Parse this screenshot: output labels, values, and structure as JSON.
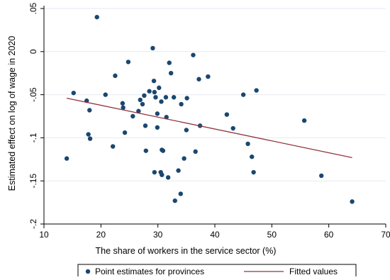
{
  "chart_data": {
    "type": "scatter",
    "xlabel": "The share of workers in the service sector (%)",
    "ylabel": "Estimated effect on log of wage in 2020",
    "xlim": [
      10,
      70
    ],
    "ylim": [
      -0.2,
      0.05
    ],
    "xticks": [
      {
        "v": 10,
        "label": "10"
      },
      {
        "v": 20,
        "label": "20"
      },
      {
        "v": 30,
        "label": "30"
      },
      {
        "v": 40,
        "label": "40"
      },
      {
        "v": 50,
        "label": "50"
      },
      {
        "v": 60,
        "label": "60"
      },
      {
        "v": 70,
        "label": "70"
      }
    ],
    "yticks": [
      {
        "v": 0.05,
        "label": ".05"
      },
      {
        "v": 0,
        "label": "0"
      },
      {
        "v": -0.05,
        "label": "-.05"
      },
      {
        "v": -0.1,
        "label": "-.1"
      },
      {
        "v": -0.15,
        "label": "-.15"
      },
      {
        "v": -0.2,
        "label": "-.2"
      }
    ],
    "grid": "horizontal",
    "legend_position": "bottom",
    "series": [
      {
        "name": "Point estimates for provinces",
        "kind": "scatter",
        "color": "#1a476f",
        "points": [
          [
            14.0,
            -0.124
          ],
          [
            15.2,
            -0.048
          ],
          [
            17.5,
            -0.057
          ],
          [
            17.8,
            -0.096
          ],
          [
            18.0,
            -0.068
          ],
          [
            18.1,
            -0.101
          ],
          [
            19.3,
            0.04
          ],
          [
            20.8,
            -0.05
          ],
          [
            22.1,
            -0.11
          ],
          [
            22.5,
            -0.028
          ],
          [
            23.8,
            -0.06
          ],
          [
            23.9,
            -0.065
          ],
          [
            24.2,
            -0.094
          ],
          [
            24.8,
            -0.012
          ],
          [
            25.6,
            -0.075
          ],
          [
            26.6,
            -0.069
          ],
          [
            26.9,
            -0.056
          ],
          [
            27.3,
            -0.061
          ],
          [
            27.6,
            -0.051
          ],
          [
            27.8,
            -0.086
          ],
          [
            27.9,
            -0.115
          ],
          [
            28.5,
            -0.046
          ],
          [
            29.1,
            0.004
          ],
          [
            29.3,
            -0.034
          ],
          [
            29.4,
            -0.047
          ],
          [
            29.4,
            -0.14
          ],
          [
            29.6,
            -0.053
          ],
          [
            29.9,
            -0.072
          ],
          [
            29.9,
            -0.088
          ],
          [
            30.2,
            -0.042
          ],
          [
            30.5,
            -0.14
          ],
          [
            30.6,
            -0.058
          ],
          [
            30.7,
            -0.143
          ],
          [
            30.7,
            -0.114
          ],
          [
            30.9,
            -0.115
          ],
          [
            31.4,
            -0.053
          ],
          [
            31.5,
            -0.076
          ],
          [
            31.8,
            -0.146
          ],
          [
            32.0,
            -0.013
          ],
          [
            32.3,
            -0.025
          ],
          [
            32.8,
            -0.053
          ],
          [
            33.0,
            -0.173
          ],
          [
            33.6,
            -0.138
          ],
          [
            34.0,
            -0.165
          ],
          [
            34.1,
            -0.061
          ],
          [
            34.6,
            -0.124
          ],
          [
            35.0,
            -0.091
          ],
          [
            35.1,
            -0.054
          ],
          [
            36.2,
            -0.004
          ],
          [
            36.6,
            -0.116
          ],
          [
            37.2,
            -0.032
          ],
          [
            37.4,
            -0.086
          ],
          [
            38.8,
            -0.029
          ],
          [
            42.1,
            -0.073
          ],
          [
            43.2,
            -0.089
          ],
          [
            45.0,
            -0.05
          ],
          [
            45.8,
            -0.107
          ],
          [
            46.5,
            -0.122
          ],
          [
            46.8,
            -0.14
          ],
          [
            47.3,
            -0.045
          ],
          [
            55.7,
            -0.08
          ],
          [
            58.7,
            -0.144
          ],
          [
            64.1,
            -0.174
          ]
        ]
      },
      {
        "name": "Fitted values",
        "kind": "line",
        "color": "#90353b",
        "points": [
          [
            14.0,
            -0.054
          ],
          [
            64.1,
            -0.123
          ]
        ]
      }
    ]
  }
}
